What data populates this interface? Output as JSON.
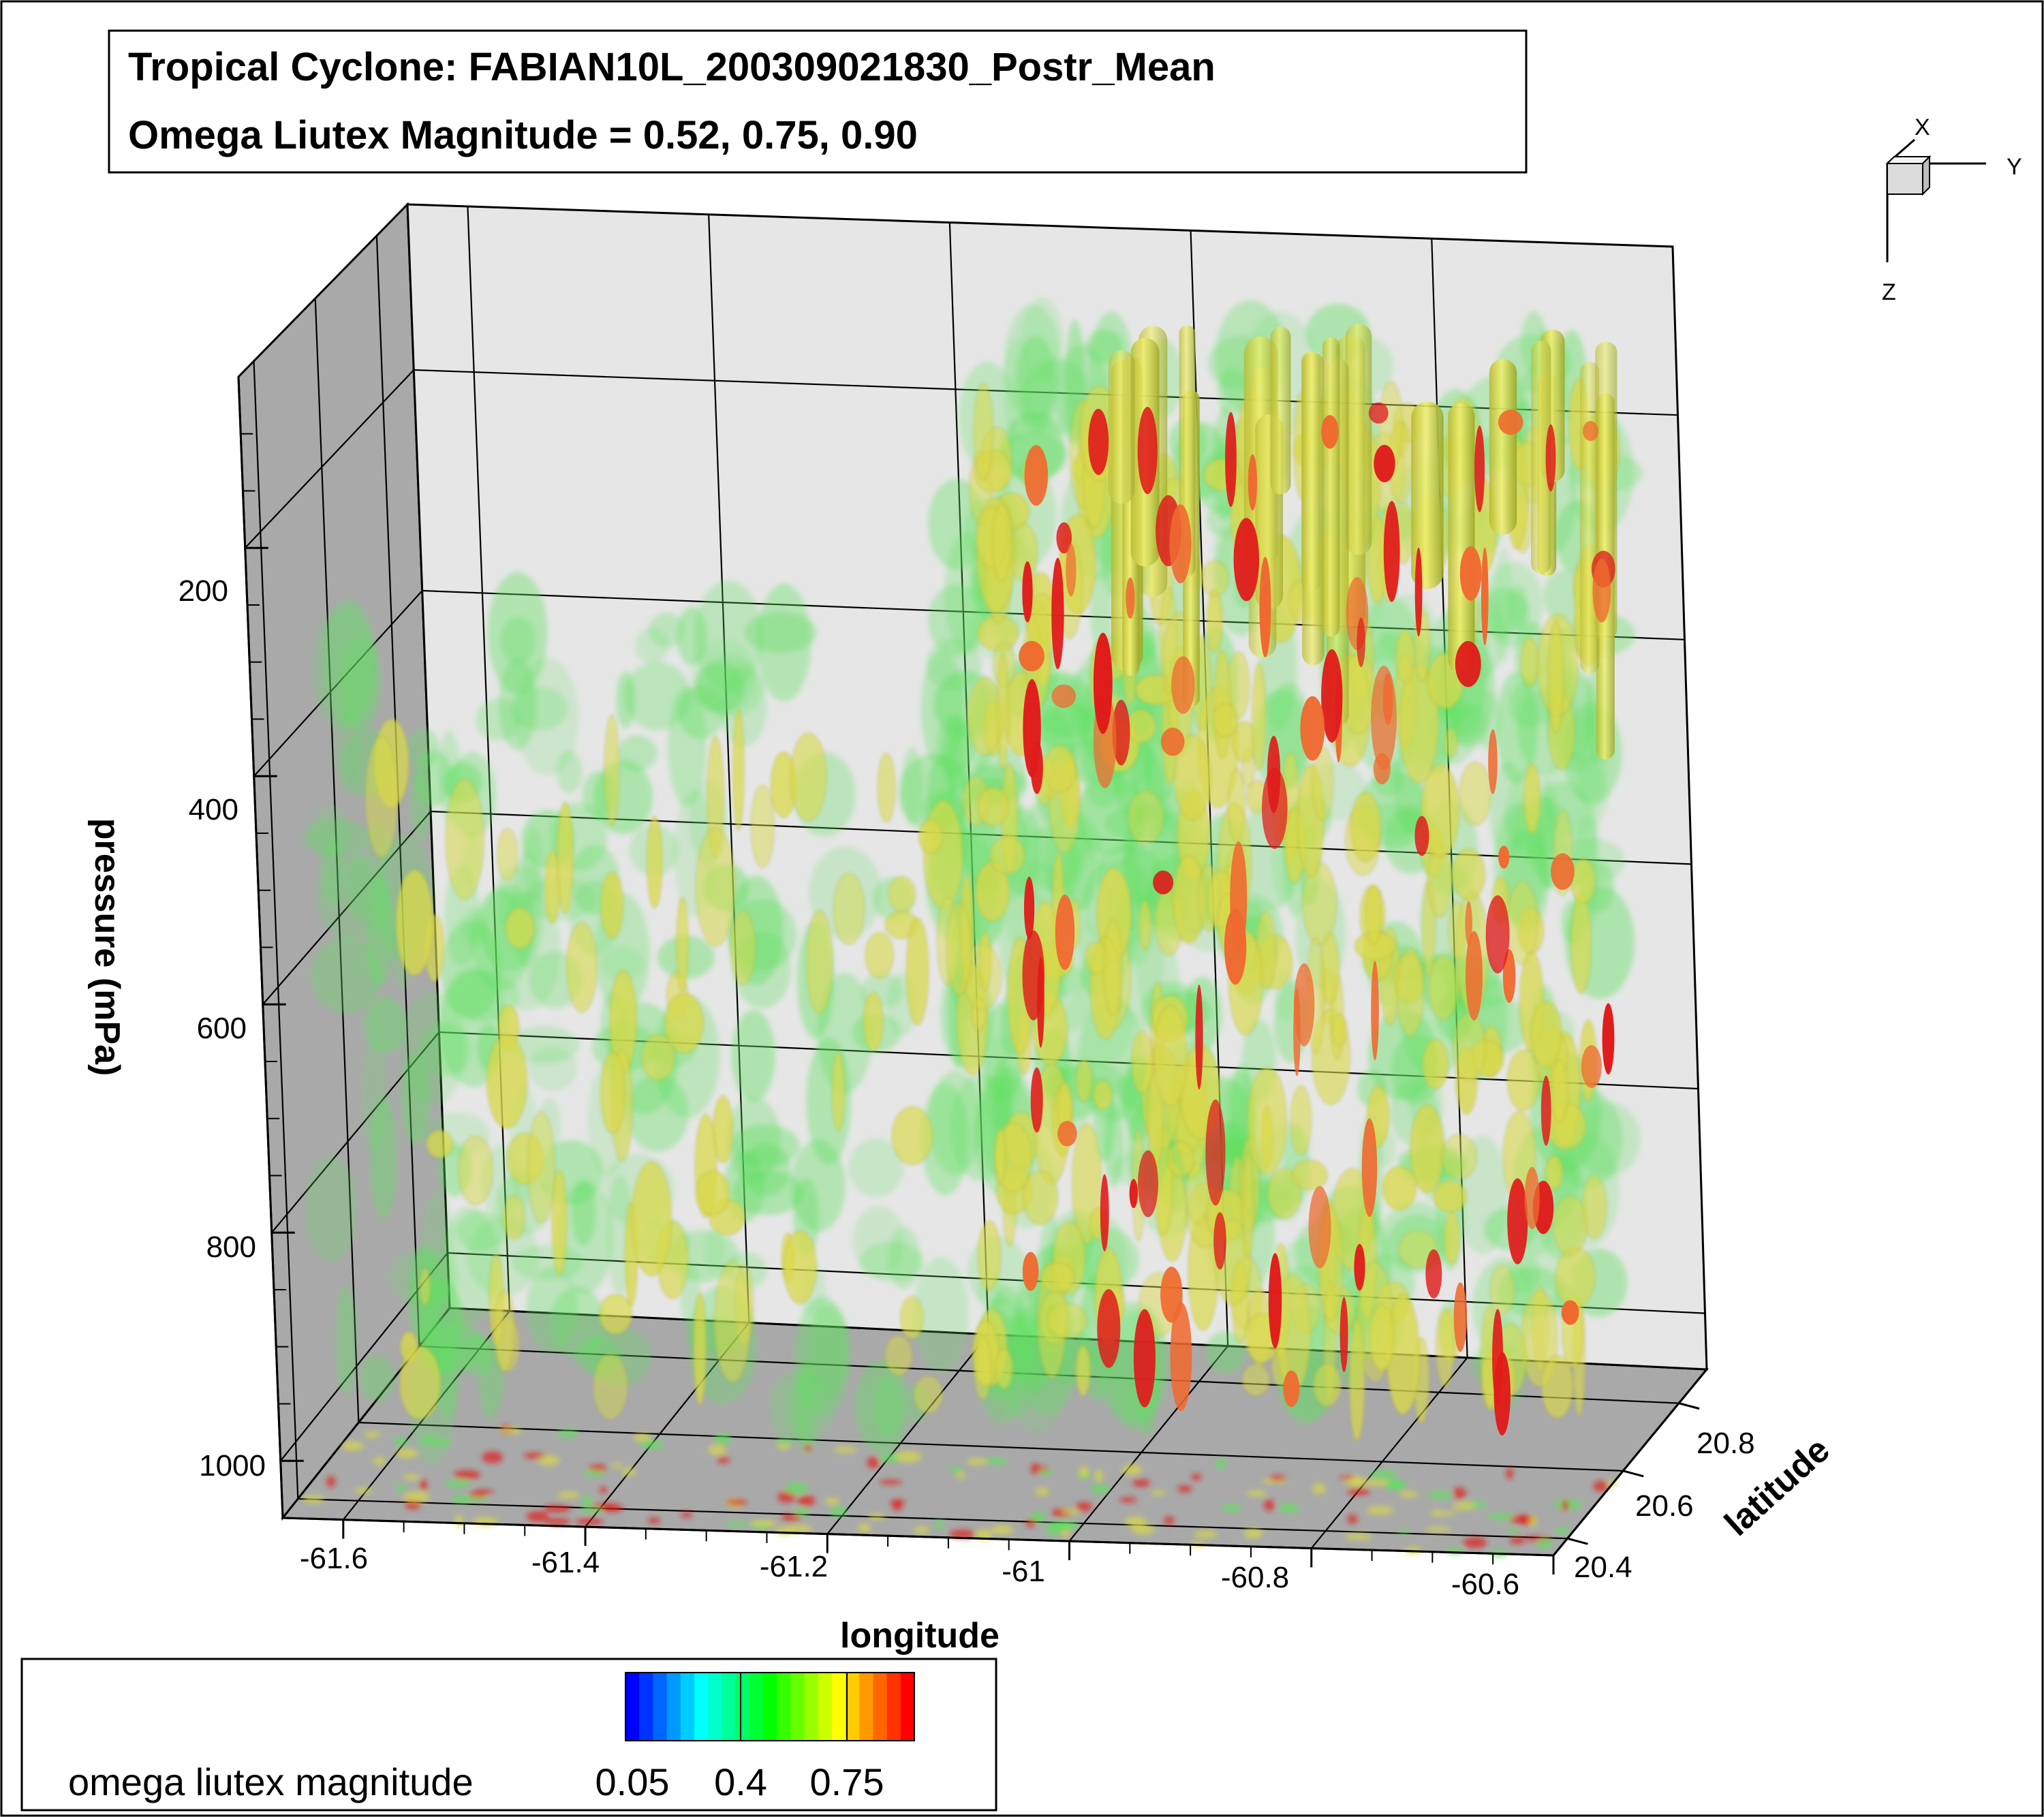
{
  "title": {
    "line1": "Tropical Cyclone: FABIAN10L_200309021830_Postr_Mean",
    "line2": "Omega Liutex Magnitude = 0.52, 0.75, 0.90"
  },
  "orientation_axes": {
    "x": "X",
    "y": "Y",
    "z": "Z"
  },
  "legend": {
    "label": "omega liutex magnitude",
    "tick_labels": [
      "0.05",
      "0.4",
      "0.75"
    ],
    "colors": [
      "#0000ff",
      "#0033ff",
      "#0066ff",
      "#0099ff",
      "#00ccff",
      "#00ffff",
      "#00ffcc",
      "#00ff99",
      "#00ff66",
      "#00ff33",
      "#00ff00",
      "#33ff00",
      "#66ff00",
      "#99ff00",
      "#ccff00",
      "#ffff00",
      "#ffcc00",
      "#ff9900",
      "#ff6600",
      "#ff3300",
      "#ff0000"
    ]
  },
  "chart_data": {
    "type": "isosurface-3d",
    "xlabel": "longitude",
    "ylabel": "latitude",
    "zlabel": "pressure (mPa)",
    "x_ticks": [
      "-61.6",
      "-61.4",
      "-61.2",
      "-61",
      "-60.8",
      "-60.6"
    ],
    "y_ticks": [
      "20.4",
      "20.6",
      "20.8"
    ],
    "z_ticks": [
      "200",
      "400",
      "600",
      "800",
      "1000"
    ],
    "x_tick_values": [
      -61.6,
      -61.4,
      -61.2,
      -61.0,
      -60.8,
      -60.6
    ],
    "y_tick_values": [
      20.4,
      20.6,
      20.8
    ],
    "z_tick_values": [
      200,
      400,
      600,
      800,
      1000
    ],
    "xlim": [
      -61.65,
      -60.6
    ],
    "ylim": [
      20.35,
      20.9
    ],
    "zlim": [
      50,
      1050
    ],
    "iso_levels": [
      0.52,
      0.75,
      0.9
    ],
    "iso_colors": [
      "#5ee05e",
      "#d9d94a",
      "#e01a1a"
    ],
    "grid": true
  }
}
